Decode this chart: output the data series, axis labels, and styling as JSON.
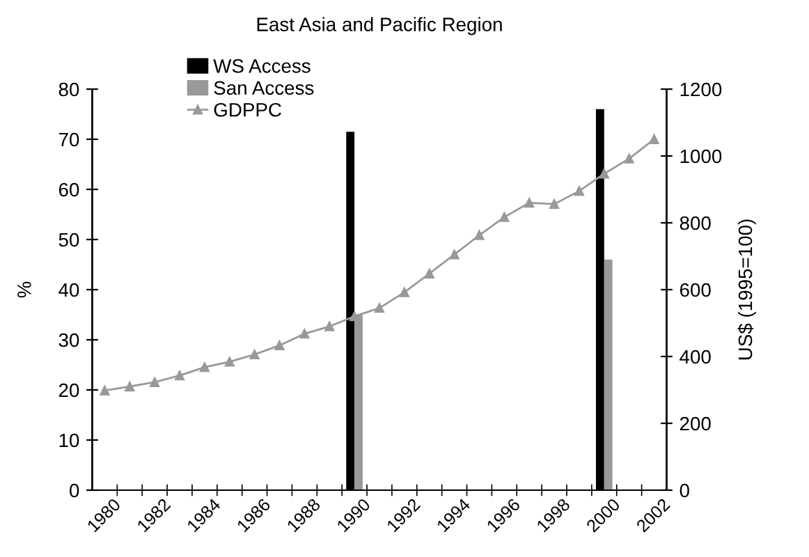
{
  "chart_data": {
    "type": "bar",
    "title": "East Asia and Pacific Region",
    "ylabel": "%",
    "y2label": "US$ (1995=100)",
    "categories": [
      "1980",
      null,
      "1982",
      null,
      "1984",
      null,
      "1986",
      null,
      "1988",
      null,
      "1990",
      null,
      "1992",
      null,
      "1994",
      null,
      "1996",
      null,
      "1998",
      null,
      "2000",
      null,
      "2002"
    ],
    "series": [
      {
        "name": "WS Access",
        "color": "#000000",
        "values": [
          null,
          null,
          null,
          null,
          null,
          null,
          null,
          null,
          null,
          null,
          71.5,
          null,
          null,
          null,
          null,
          null,
          null,
          null,
          null,
          null,
          76,
          null,
          null
        ]
      },
      {
        "name": "San Access",
        "color": "#999999",
        "values": [
          null,
          null,
          null,
          null,
          null,
          null,
          null,
          null,
          null,
          null,
          35,
          null,
          null,
          null,
          null,
          null,
          null,
          null,
          null,
          null,
          46,
          null,
          null
        ]
      },
      {
        "name": "GDPPC",
        "type": "line",
        "axis": "y2",
        "color": "#999999",
        "marker": "triangle",
        "values": [
          298,
          310,
          323,
          343,
          368,
          384,
          406,
          433,
          468,
          490,
          520,
          545,
          592,
          648,
          705,
          763,
          817,
          860,
          856,
          895,
          947,
          992,
          1050
        ]
      }
    ],
    "ylim": [
      0,
      80
    ],
    "yticks": [
      0,
      10,
      20,
      30,
      40,
      50,
      60,
      70,
      80
    ],
    "y2lim": [
      0,
      1200
    ],
    "y2ticks": [
      0,
      200,
      400,
      600,
      800,
      1000,
      1200
    ],
    "grid": false,
    "legend": "top left"
  }
}
